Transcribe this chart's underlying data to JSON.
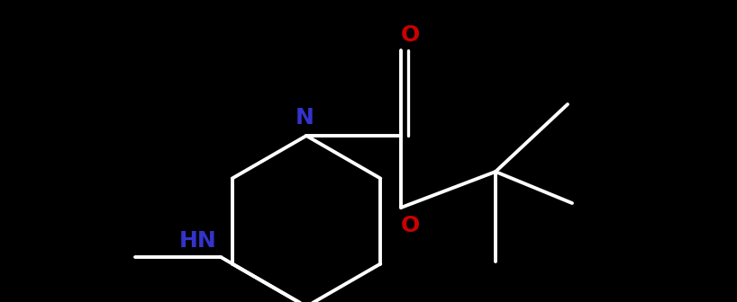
{
  "background_color": "#000000",
  "bond_color": "#ffffff",
  "N_color": "#3333cc",
  "O_color": "#cc0000",
  "HN_label": "HN",
  "N_label": "N",
  "O_label": "O",
  "line_width": 2.8,
  "font_size_atom": 16,
  "figsize": [
    8.18,
    3.36
  ],
  "xlim": [
    0,
    8.18
  ],
  "ylim": [
    0,
    3.36
  ]
}
